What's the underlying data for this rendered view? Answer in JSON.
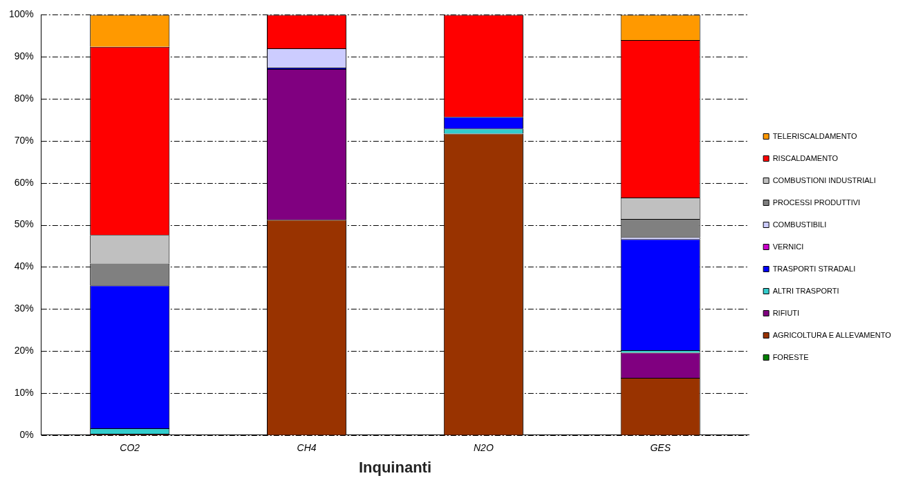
{
  "chart_data": {
    "type": "bar",
    "stacked": true,
    "xlabel": "Inquinanti",
    "categories": [
      "CO2",
      "CH4",
      "N2O",
      "GES"
    ],
    "series": [
      {
        "name": "FORESTE",
        "color": "#008000",
        "values": [
          0,
          0,
          0,
          0
        ]
      },
      {
        "name": "AGRICOLTURA E ALLEVAMENTO",
        "color": "#993300",
        "values": [
          0.3,
          51.2,
          71.7,
          13.6
        ]
      },
      {
        "name": "RIFIUTI",
        "color": "#800080",
        "values": [
          0,
          35.9,
          0,
          6.0
        ]
      },
      {
        "name": "ALTRI TRASPORTI",
        "color": "#33cccc",
        "values": [
          1.3,
          0,
          1.2,
          0.6
        ]
      },
      {
        "name": "TRASPORTI STRADALI",
        "color": "#0000ff",
        "values": [
          34.0,
          0.3,
          2.8,
          26.4
        ]
      },
      {
        "name": "VERNICI",
        "color": "#cc00cc",
        "values": [
          0,
          0,
          0,
          0
        ]
      },
      {
        "name": "COMBUSTIBILI",
        "color": "#ccccff",
        "values": [
          0,
          4.6,
          0,
          0.5
        ]
      },
      {
        "name": "PROCESSI PRODUTTIVI",
        "color": "#808080",
        "values": [
          5.2,
          0,
          0,
          4.3
        ]
      },
      {
        "name": "COMBUSTIONI INDUSTRIALI",
        "color": "#c0c0c0",
        "values": [
          6.8,
          0,
          0,
          5.1
        ]
      },
      {
        "name": "RISCALDAMENTO",
        "color": "#ff0000",
        "values": [
          44.8,
          8.0,
          24.3,
          37.5
        ]
      },
      {
        "name": "TELERISCALDAMENTO",
        "color": "#ff9900",
        "values": [
          7.6,
          0,
          0,
          6.0
        ]
      }
    ],
    "ylim": [
      0,
      100
    ],
    "yticks": [
      {
        "value": 0,
        "label": "0%"
      },
      {
        "value": 10,
        "label": "10%"
      },
      {
        "value": 20,
        "label": "20%"
      },
      {
        "value": 30,
        "label": "30%"
      },
      {
        "value": 40,
        "label": "40%"
      },
      {
        "value": 50,
        "label": "50%"
      },
      {
        "value": 60,
        "label": "60%"
      },
      {
        "value": 70,
        "label": "70%"
      },
      {
        "value": 80,
        "label": "80%"
      },
      {
        "value": 90,
        "label": "90%"
      },
      {
        "value": 100,
        "label": "100%"
      }
    ],
    "grid": "y",
    "legend": "right"
  }
}
